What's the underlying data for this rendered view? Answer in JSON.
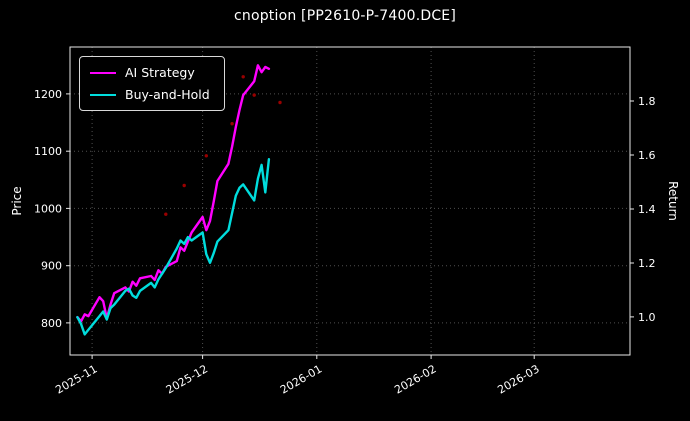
{
  "window": {
    "title": "cnoption [PP2610-P-7400.DCE]"
  },
  "chart_data": {
    "type": "line",
    "title": "cnoption [PP2610-P-7400.DCE]",
    "ylabel_left": "Price",
    "ylabel_right": "Return",
    "background_color": "#000000",
    "grid_color": "#4f4f4f",
    "text_color": "#ffffff",
    "grid": "dotted",
    "legend_position": "top-left",
    "x_domain": [
      "2025-10-26",
      "2026-03-27"
    ],
    "x_ticks": [
      {
        "date": "2025-11-01",
        "label": "2025-11"
      },
      {
        "date": "2025-12-01",
        "label": "2025-12"
      },
      {
        "date": "2026-01-01",
        "label": "2026-01"
      },
      {
        "date": "2026-02-01",
        "label": "2026-02"
      },
      {
        "date": "2026-03-01",
        "label": "2026-03"
      }
    ],
    "ylim_left": [
      744,
      1282
    ],
    "y_ticks_left": [
      {
        "value": 800,
        "label": "800"
      },
      {
        "value": 900,
        "label": "900"
      },
      {
        "value": 1000,
        "label": "1000"
      },
      {
        "value": 1100,
        "label": "1100"
      },
      {
        "value": 1200,
        "label": "1200"
      }
    ],
    "ylim_right": [
      0.859,
      2.0
    ],
    "y_ticks_right": [
      {
        "value": 1.0,
        "label": "1.0"
      },
      {
        "value": 1.2,
        "label": "1.2"
      },
      {
        "value": 1.4,
        "label": "1.4"
      },
      {
        "value": 1.6,
        "label": "1.6"
      },
      {
        "value": 1.8,
        "label": "1.8"
      }
    ],
    "dates": [
      "2025-10-28",
      "2025-10-29",
      "2025-10-30",
      "2025-10-31",
      "2025-11-03",
      "2025-11-04",
      "2025-11-05",
      "2025-11-06",
      "2025-11-07",
      "2025-11-10",
      "2025-11-11",
      "2025-11-12",
      "2025-11-13",
      "2025-11-14",
      "2025-11-17",
      "2025-11-18",
      "2025-11-19",
      "2025-11-20",
      "2025-11-21",
      "2025-11-24",
      "2025-11-25",
      "2025-11-26",
      "2025-11-27",
      "2025-11-28",
      "2025-12-01",
      "2025-12-02",
      "2025-12-03",
      "2025-12-04",
      "2025-12-05",
      "2025-12-08",
      "2025-12-09",
      "2025-12-10",
      "2025-12-11",
      "2025-12-12",
      "2025-12-15",
      "2025-12-16",
      "2025-12-17",
      "2025-12-18",
      "2025-12-19"
    ],
    "series": [
      {
        "name": "AI Strategy",
        "color": "#ff00ff",
        "values": [
          810,
          803,
          815,
          812,
          845,
          838,
          808,
          832,
          852,
          862,
          855,
          872,
          865,
          878,
          882,
          875,
          892,
          886,
          898,
          908,
          932,
          926,
          942,
          958,
          985,
          962,
          978,
          1012,
          1048,
          1078,
          1108,
          1142,
          1172,
          1198,
          1222,
          1250,
          1238,
          1247,
          1244
        ]
      },
      {
        "name": "Buy-and-Hold",
        "color": "#00dddd",
        "values": [
          810,
          798,
          780,
          788,
          812,
          820,
          806,
          826,
          832,
          856,
          860,
          848,
          844,
          856,
          870,
          862,
          876,
          886,
          896,
          930,
          944,
          938,
          950,
          944,
          958,
          920,
          905,
          922,
          942,
          962,
          992,
          1022,
          1036,
          1042,
          1014,
          1052,
          1076,
          1028,
          1086
        ]
      }
    ],
    "signal_markers": {
      "color": "#990000",
      "points": [
        {
          "date": "2025-11-21",
          "price": 990
        },
        {
          "date": "2025-11-26",
          "price": 1040
        },
        {
          "date": "2025-12-02",
          "price": 1092
        },
        {
          "date": "2025-12-09",
          "price": 1148
        },
        {
          "date": "2025-12-12",
          "price": 1230
        },
        {
          "date": "2025-12-15",
          "price": 1198
        },
        {
          "date": "2025-12-22",
          "price": 1185
        }
      ]
    }
  }
}
